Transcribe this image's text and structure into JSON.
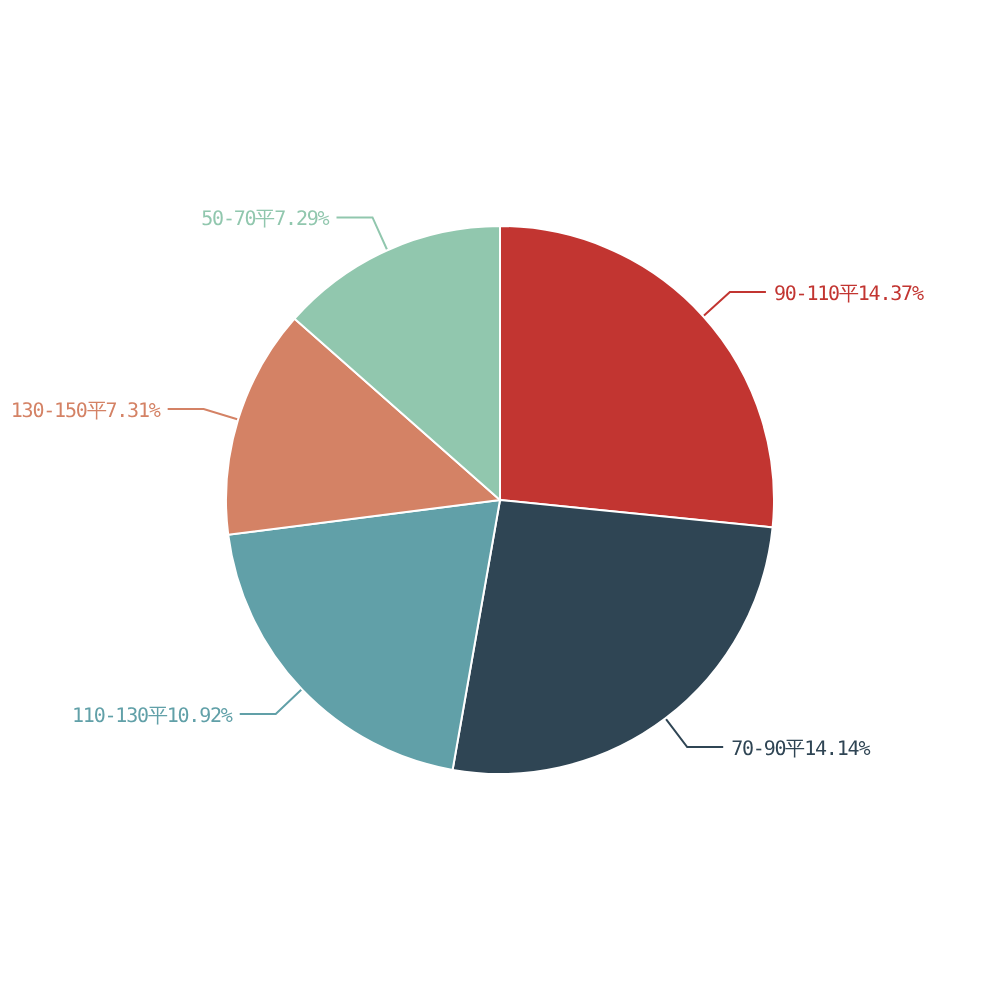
{
  "chart_data": {
    "type": "pie",
    "categories": [
      "90-110平",
      "70-90平",
      "110-130平",
      "130-150平",
      "50-70平"
    ],
    "values": [
      14.37,
      14.14,
      10.92,
      7.31,
      7.29
    ],
    "value_labels": [
      "14.37%",
      "14.14%",
      "10.92%",
      "7.31%",
      "7.29%"
    ],
    "colors": [
      "#c23531",
      "#2f4554",
      "#61a0a8",
      "#d48265",
      "#91c7ae"
    ]
  }
}
